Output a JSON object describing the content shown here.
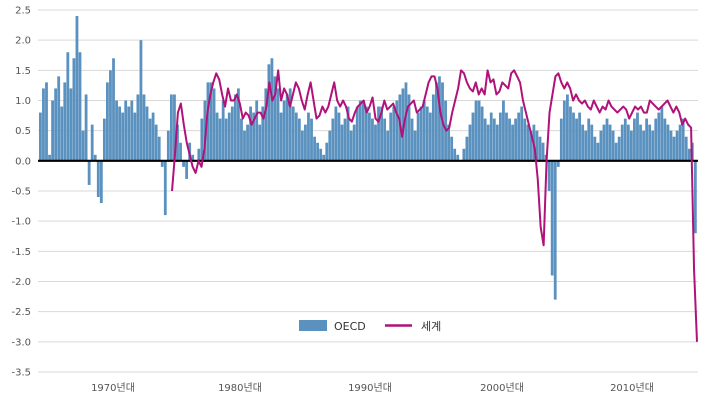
{
  "chart_data": {
    "type": "bar+line",
    "title": "",
    "xlabel": "",
    "ylabel": "",
    "ylim": [
      -3.5,
      2.5
    ],
    "yticks": [
      "2.5",
      "2.0",
      "1.5",
      "1.0",
      "0.5",
      "0.0",
      "-0.5",
      "-1.0",
      "-1.5",
      "-2.0",
      "-2.5",
      "-3.0",
      "-3.5"
    ],
    "xticks": [
      "1970년대",
      "1980년대",
      "1990년대",
      "2000년대",
      "2010년대"
    ],
    "grid": true,
    "legend_position": "bottom-center",
    "colors": {
      "bar": "#5a91bf",
      "line": "#b0127a",
      "grid": "#d9d9d9",
      "zero": "#000000"
    },
    "series": [
      {
        "name": "OECD",
        "kind": "bar",
        "values": [
          0.8,
          1.2,
          1.3,
          0.1,
          1.0,
          1.2,
          1.4,
          0.9,
          1.3,
          1.8,
          1.2,
          1.7,
          2.4,
          1.8,
          0.5,
          1.1,
          -0.4,
          0.6,
          0.1,
          -0.6,
          -0.7,
          0.7,
          1.3,
          1.5,
          1.7,
          1.0,
          0.9,
          0.8,
          1.0,
          0.9,
          1.0,
          0.8,
          1.1,
          2.0,
          1.1,
          0.9,
          0.7,
          0.8,
          0.6,
          0.4,
          -0.1,
          -0.9,
          0.5,
          1.1,
          1.1,
          0.6,
          0.3,
          -0.1,
          -0.3,
          0.3,
          0.1,
          0.0,
          0.2,
          0.7,
          1.0,
          1.3,
          1.3,
          1.2,
          0.8,
          0.7,
          1.0,
          0.7,
          0.8,
          0.9,
          1.1,
          1.2,
          0.7,
          0.5,
          0.6,
          0.9,
          0.8,
          1.0,
          0.6,
          0.9,
          1.2,
          1.6,
          1.7,
          1.4,
          1.2,
          0.8,
          1.0,
          1.1,
          1.2,
          0.9,
          0.8,
          0.7,
          0.5,
          0.6,
          0.8,
          0.7,
          0.4,
          0.3,
          0.2,
          0.1,
          0.3,
          0.5,
          0.7,
          0.9,
          0.8,
          0.6,
          0.7,
          0.9,
          0.5,
          0.6,
          0.9,
          1.0,
          1.0,
          0.9,
          0.8,
          0.7,
          0.6,
          0.9,
          0.9,
          0.7,
          0.5,
          0.8,
          0.9,
          1.0,
          1.1,
          1.2,
          1.3,
          1.1,
          0.7,
          0.5,
          0.8,
          0.9,
          1.0,
          0.9,
          0.8,
          1.1,
          1.3,
          1.4,
          1.3,
          1.0,
          0.6,
          0.4,
          0.2,
          0.1,
          0.0,
          0.2,
          0.4,
          0.6,
          0.8,
          1.0,
          1.0,
          0.9,
          0.7,
          0.6,
          0.8,
          0.7,
          0.6,
          0.8,
          1.0,
          0.8,
          0.7,
          0.6,
          0.7,
          0.8,
          0.9,
          0.7,
          0.6,
          0.5,
          0.6,
          0.5,
          0.4,
          0.3,
          0.1,
          -0.5,
          -1.9,
          -2.3,
          -0.1,
          0.7,
          1.0,
          1.1,
          0.9,
          0.8,
          0.7,
          0.8,
          0.6,
          0.5,
          0.7,
          0.6,
          0.4,
          0.3,
          0.5,
          0.6,
          0.7,
          0.6,
          0.5,
          0.3,
          0.4,
          0.6,
          0.7,
          0.6,
          0.5,
          0.7,
          0.8,
          0.6,
          0.5,
          0.7,
          0.6,
          0.5,
          0.7,
          0.8,
          0.9,
          0.7,
          0.6,
          0.5,
          0.4,
          0.5,
          0.6,
          0.7,
          0.4,
          0.2,
          0.3,
          -1.2
        ]
      },
      {
        "name": "세계",
        "kind": "line",
        "values": [
          -0.5,
          0.1,
          0.8,
          0.95,
          0.6,
          0.3,
          0.1,
          -0.1,
          -0.2,
          0.0,
          -0.1,
          0.2,
          0.8,
          1.1,
          1.3,
          1.45,
          1.35,
          1.1,
          0.9,
          1.2,
          1.0,
          1.0,
          1.1,
          0.95,
          0.7,
          0.8,
          0.75,
          0.6,
          0.7,
          0.8,
          0.8,
          0.7,
          0.9,
          1.3,
          1.0,
          1.1,
          1.5,
          1.0,
          1.2,
          1.1,
          0.9,
          1.1,
          1.3,
          1.2,
          1.0,
          0.85,
          1.1,
          1.3,
          1.0,
          0.7,
          0.75,
          0.9,
          0.8,
          0.9,
          1.1,
          1.3,
          1.0,
          0.9,
          1.0,
          0.9,
          0.7,
          0.65,
          0.8,
          0.9,
          0.95,
          1.0,
          0.8,
          0.9,
          1.05,
          0.7,
          0.65,
          0.8,
          1.0,
          0.85,
          0.9,
          0.95,
          0.8,
          0.7,
          0.4,
          0.7,
          0.9,
          0.95,
          1.0,
          0.8,
          0.85,
          0.9,
          1.1,
          1.3,
          1.4,
          1.4,
          1.2,
          0.8,
          0.6,
          0.5,
          0.55,
          0.8,
          1.0,
          1.2,
          1.5,
          1.45,
          1.3,
          1.2,
          1.15,
          1.3,
          1.1,
          1.2,
          1.1,
          1.5,
          1.3,
          1.35,
          1.1,
          1.15,
          1.3,
          1.25,
          1.2,
          1.45,
          1.5,
          1.4,
          1.3,
          1.0,
          0.8,
          0.6,
          0.4,
          0.2,
          -0.3,
          -1.1,
          -1.4,
          0.0,
          0.8,
          1.1,
          1.4,
          1.45,
          1.3,
          1.2,
          1.3,
          1.2,
          1.0,
          1.1,
          1.0,
          0.95,
          1.0,
          0.9,
          0.85,
          1.0,
          0.9,
          0.8,
          0.9,
          0.85,
          1.0,
          0.9,
          0.85,
          0.8,
          0.85,
          0.9,
          0.85,
          0.7,
          0.8,
          0.9,
          0.85,
          0.9,
          0.8,
          0.8,
          1.0,
          0.95,
          0.9,
          0.85,
          0.9,
          0.95,
          1.0,
          0.9,
          0.8,
          0.9,
          0.8,
          0.6,
          0.7,
          0.6,
          0.55,
          -1.8,
          -3.0
        ]
      }
    ]
  }
}
